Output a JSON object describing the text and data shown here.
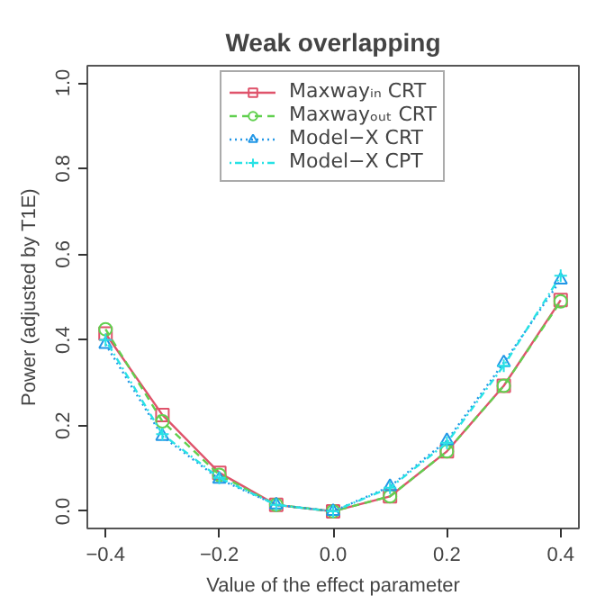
{
  "chart_data": {
    "type": "line",
    "title": "Weak overlapping",
    "xlabel": "Value of the effect parameter",
    "ylabel": "Power (adjusted by T1E)",
    "x": [
      -0.4,
      -0.3,
      -0.2,
      -0.1,
      0.0,
      0.1,
      0.2,
      0.3,
      0.4
    ],
    "series": [
      {
        "name": "Maxwayᵢₙ CRT",
        "color": "#df536b",
        "marker": "square",
        "line_style": "solid",
        "values": [
          0.415,
          0.225,
          0.09,
          0.015,
          0.0,
          0.035,
          0.14,
          0.293,
          0.493
        ]
      },
      {
        "name": "Maxwayₒᵤₜ CRT",
        "color": "#61d04f",
        "marker": "circle",
        "line_style": "dashed",
        "values": [
          0.425,
          0.21,
          0.085,
          0.015,
          0.0,
          0.035,
          0.14,
          0.293,
          0.49
        ]
      },
      {
        "name": "Model−X CRT",
        "color": "#2297e6",
        "marker": "triangle",
        "line_style": "dotted",
        "values": [
          0.39,
          0.175,
          0.075,
          0.015,
          0.0,
          0.058,
          0.165,
          0.347,
          0.54
        ]
      },
      {
        "name": "Model−X CPT",
        "color": "#28e2e5",
        "marker": "cross",
        "line_style": "dotdash",
        "values": [
          0.4,
          0.18,
          0.078,
          0.015,
          0.0,
          0.055,
          0.16,
          0.34,
          0.55
        ]
      }
    ],
    "xlim": [
      -0.432,
      0.432
    ],
    "ylim": [
      -0.04,
      1.04
    ],
    "xticks": [
      {
        "value": -0.4,
        "label": "−0.4"
      },
      {
        "value": -0.2,
        "label": "−0.2"
      },
      {
        "value": 0.0,
        "label": "0.0"
      },
      {
        "value": 0.2,
        "label": "0.2"
      },
      {
        "value": 0.4,
        "label": "0.4"
      }
    ],
    "yticks": [
      {
        "value": 0.0,
        "label": "0.0"
      },
      {
        "value": 0.2,
        "label": "0.2"
      },
      {
        "value": 0.4,
        "label": "0.4"
      },
      {
        "value": 0.6,
        "label": "0.6"
      },
      {
        "value": 0.8,
        "label": "0.8"
      },
      {
        "value": 1.0,
        "label": "1.0"
      }
    ],
    "grid": false,
    "legend": "top"
  }
}
